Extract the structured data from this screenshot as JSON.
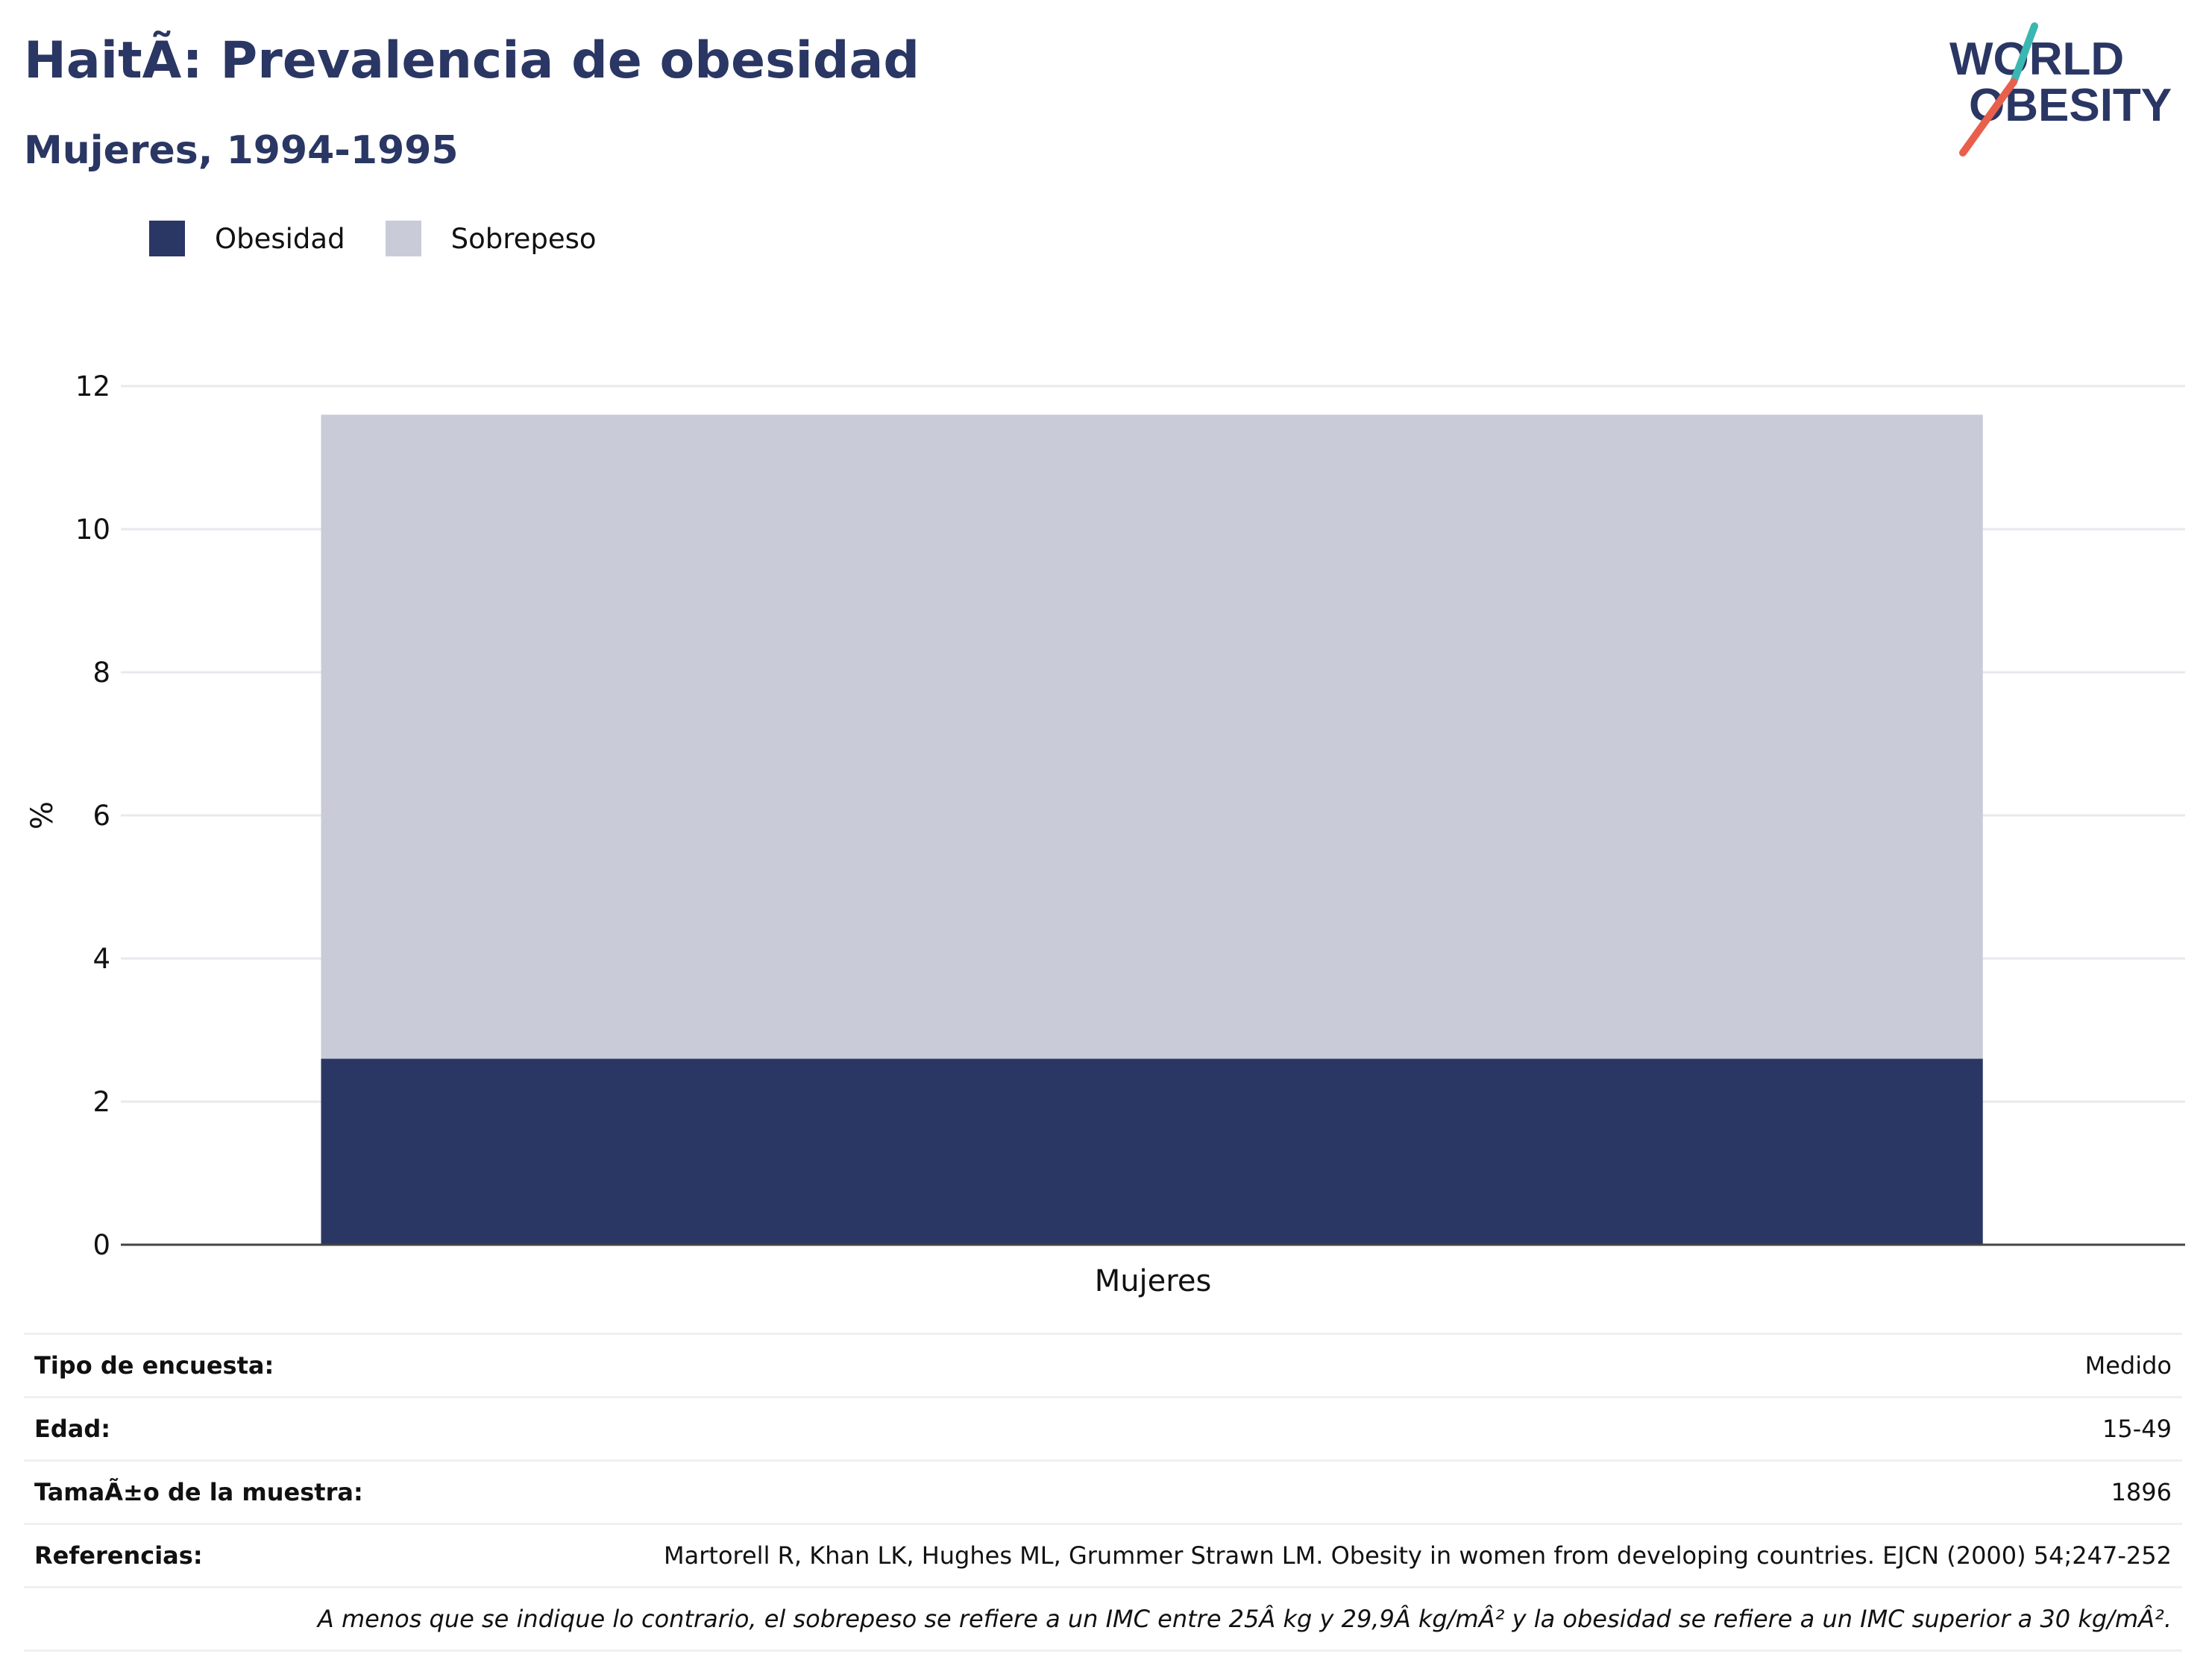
{
  "header": {
    "title": "HaitÃ: Prevalencia de obesidad",
    "subtitle": "Mujeres, 1994-1995"
  },
  "logo": {
    "line1": "WORLD",
    "line2": "OBESITY"
  },
  "legend": [
    {
      "label": "Obesidad",
      "color": "#2a3663"
    },
    {
      "label": "Sobrepeso",
      "color": "#c9ccd8"
    }
  ],
  "chart_data": {
    "type": "bar",
    "stacked": true,
    "categories": [
      "Mujeres"
    ],
    "series": [
      {
        "name": "Obesidad",
        "values": [
          2.6
        ],
        "color": "#2a3663"
      },
      {
        "name": "Sobrepeso",
        "values": [
          9.0
        ],
        "color": "#c9ccd8"
      }
    ],
    "ylabel": "%",
    "ylim": [
      0,
      12
    ],
    "yticks": [
      0,
      2,
      4,
      6,
      8,
      10,
      12
    ],
    "grid": true,
    "legend_position": "top-left"
  },
  "info": {
    "rows": [
      {
        "key": "Tipo de encuesta:",
        "value": "Medido"
      },
      {
        "key": "Edad:",
        "value": "15-49"
      },
      {
        "key": "TamaÃ±o de la muestra:",
        "value": "1896"
      },
      {
        "key": "Referencias:",
        "value": "Martorell R, Khan LK, Hughes ML, Grummer Strawn LM. Obesity in women from developing countries. EJCN (2000) 54;247-252"
      }
    ],
    "note": "A menos que se indique lo contrario, el sobrepeso se refiere a un IMC entre 25Â kg y 29,9Â kg/mÂ² y la obesidad se refiere a un IMC superior a 30 kg/mÂ²."
  }
}
